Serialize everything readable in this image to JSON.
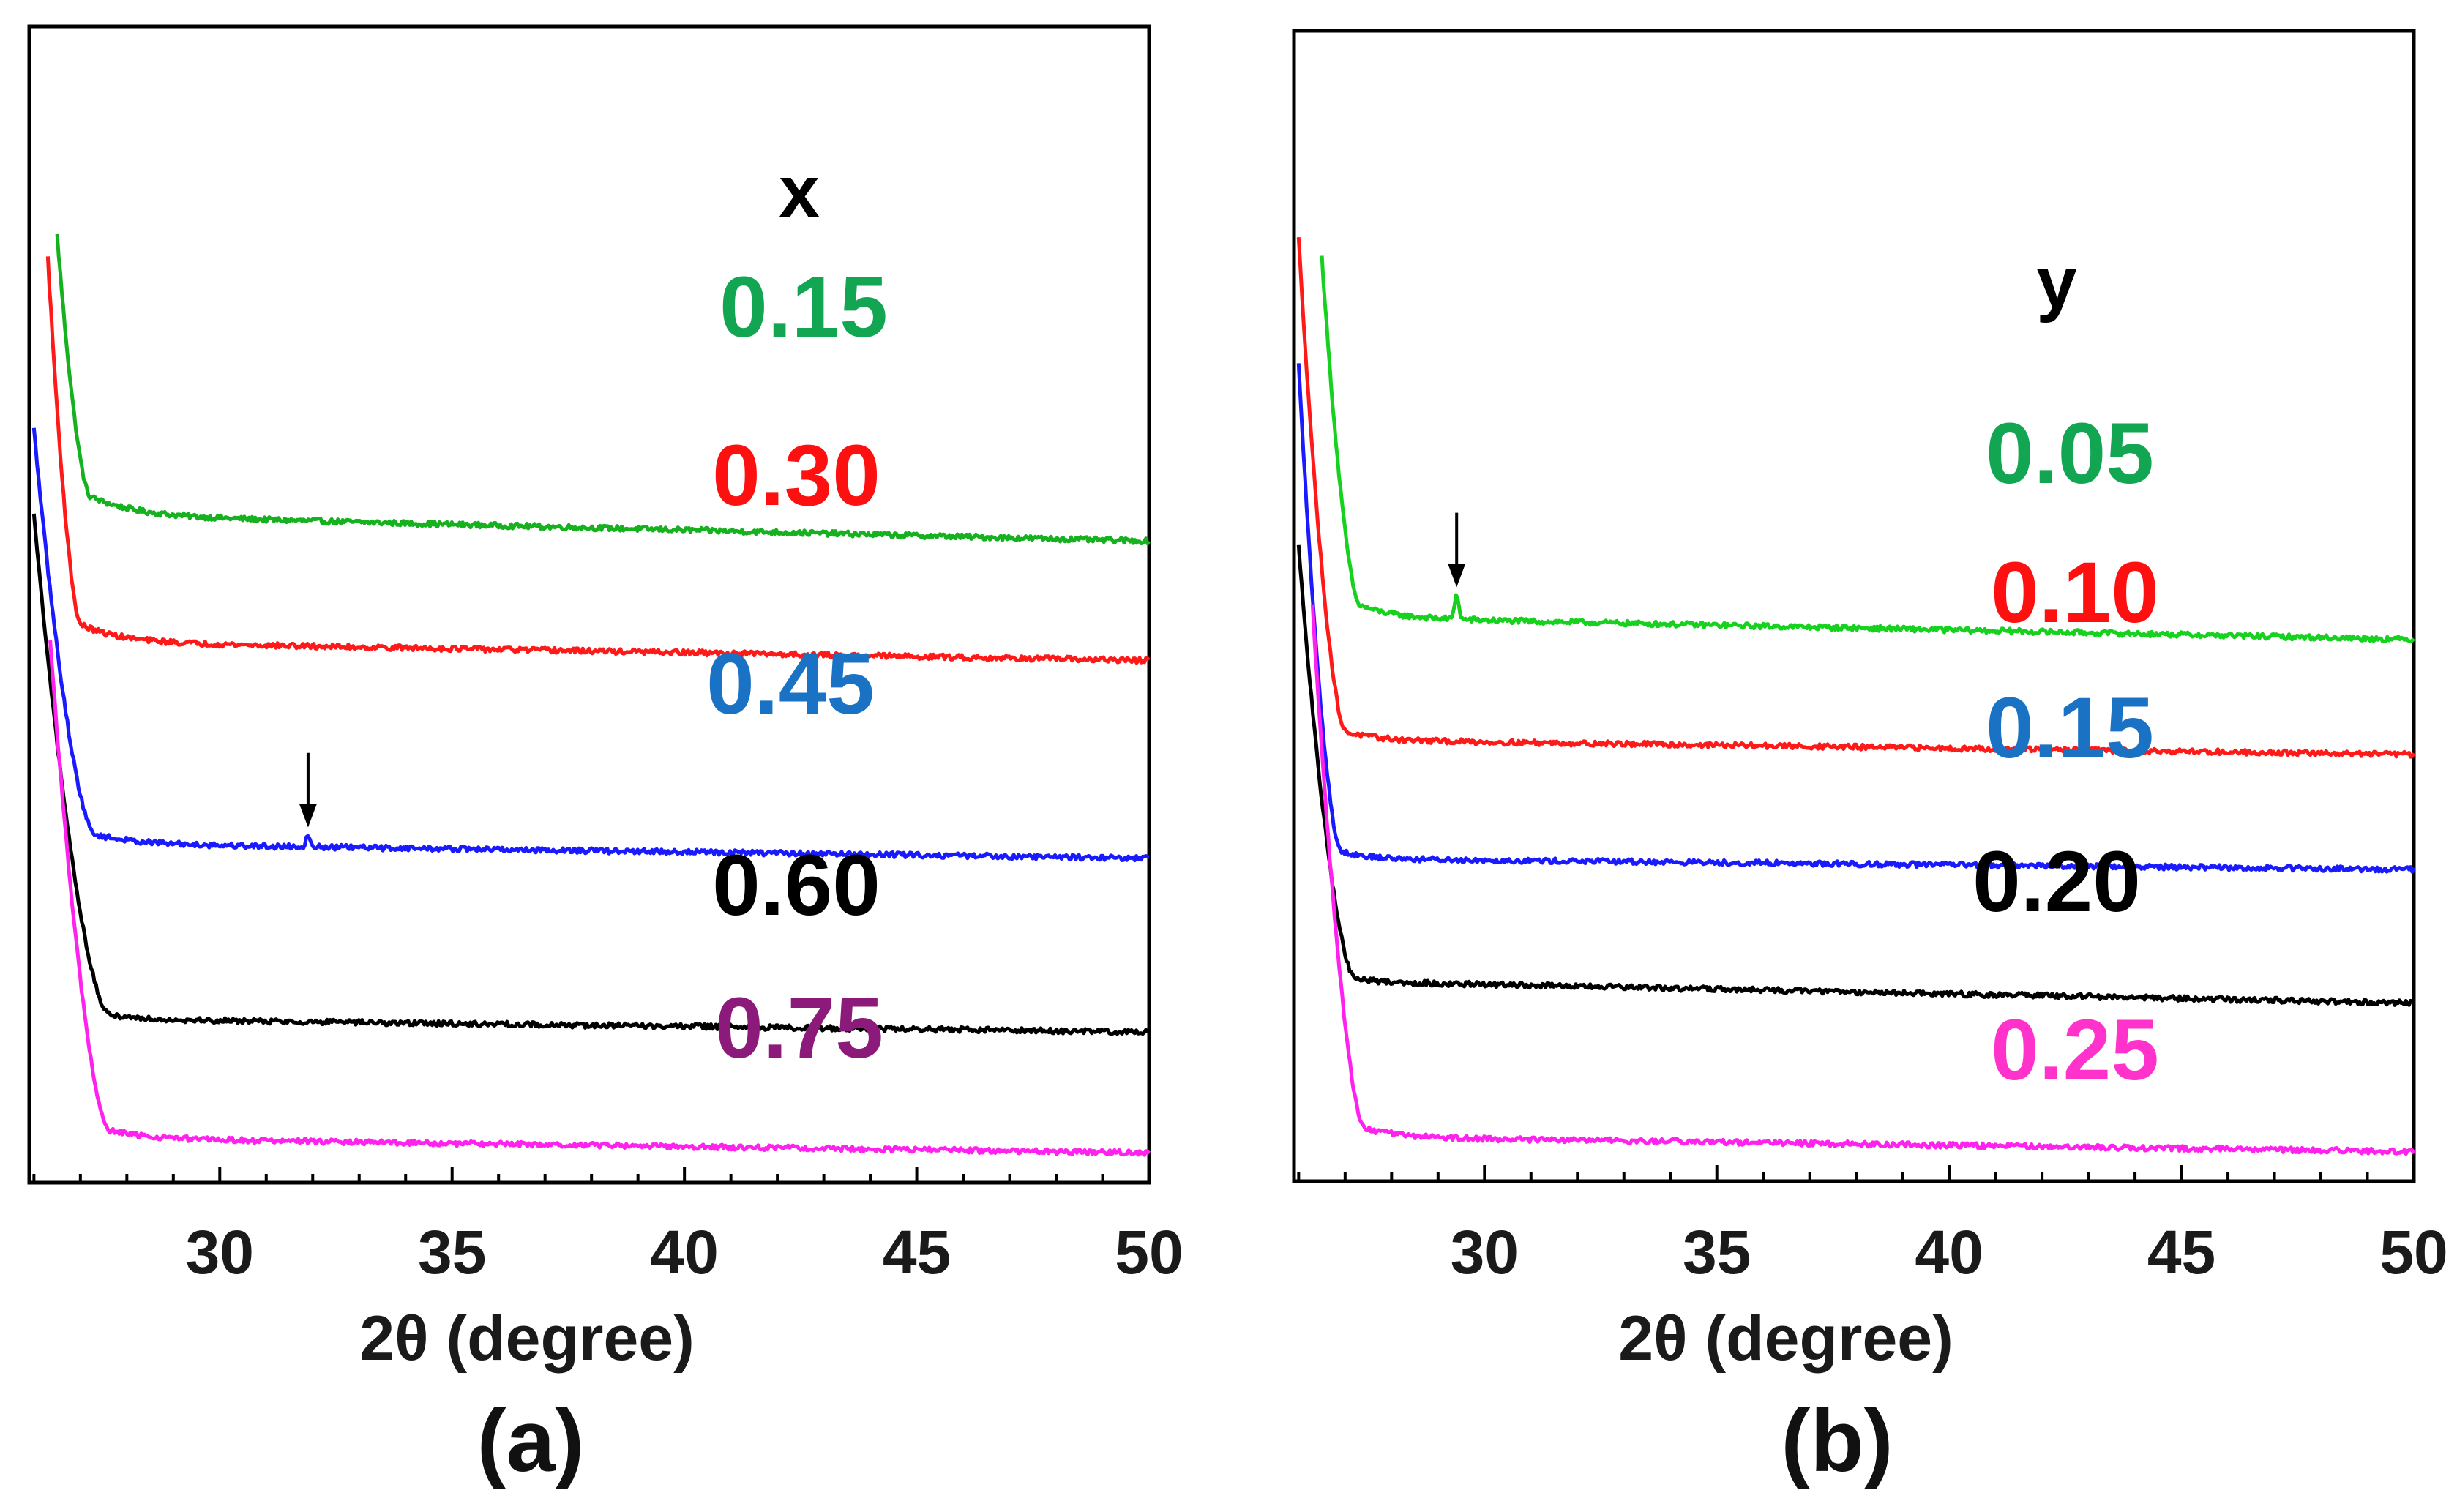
{
  "chart_data": [
    {
      "type": "line",
      "panel_label": "(a)",
      "legend_title": "x",
      "xlabel": "2θ (degree)",
      "ylabel": "",
      "xlim": [
        25.9,
        50
      ],
      "xticks": [
        30,
        35,
        40,
        45,
        50
      ],
      "xtick_labels": [
        "30",
        "35",
        "40",
        "45",
        "50"
      ],
      "y_units": "arbitrary (offset-stacked intensity)",
      "series": [
        {
          "name": "0.15",
          "color": "#16b11e",
          "label_color": "#12a552",
          "onset": 26.5,
          "baseline": 8.45,
          "amp": 3.2,
          "shoulder": 27.2,
          "decay": 0.95,
          "tail_drop": 0.35,
          "peak": null
        },
        {
          "name": "0.30",
          "color": "#ff1a1a",
          "label_color": "#ff1010",
          "onset": 26.3,
          "baseline": 6.75,
          "amp": 4.6,
          "shoulder": 27.0,
          "decay": 0.85,
          "tail_drop": 0.25,
          "peak": null
        },
        {
          "name": "0.45",
          "color": "#1a1aff",
          "label_color": "#1a72c4",
          "onset": 26.0,
          "baseline": 4.05,
          "amp": 5.0,
          "shoulder": 27.3,
          "decay": 0.9,
          "tail_drop": 0.2,
          "peak": {
            "x": 31.9,
            "height": 0.18
          }
        },
        {
          "name": "0.60",
          "color": "#000000",
          "label_color": "#000000",
          "onset": 26.0,
          "baseline": 1.7,
          "amp": 6.2,
          "shoulder": 27.6,
          "decay": 0.75,
          "tail_drop": 0.18,
          "peak": null
        },
        {
          "name": "0.75",
          "color": "#ff22ee",
          "label_color": "#8b1a7a",
          "onset": 26.35,
          "baseline": 0.1,
          "amp": 6.1,
          "shoulder": 27.6,
          "decay": 0.8,
          "tail_drop": 0.2,
          "peak": null
        }
      ],
      "annotations": [
        {
          "type": "arrow",
          "x": 31.9,
          "series": "0.45"
        }
      ]
    },
    {
      "type": "line",
      "panel_label": "(b)",
      "legend_title": "y",
      "xlabel": "2θ (degree)",
      "ylabel": "",
      "xlim": [
        25.9,
        50
      ],
      "xticks": [
        30,
        35,
        40,
        45,
        50
      ],
      "xtick_labels": [
        "30",
        "35",
        "40",
        "45",
        "50"
      ],
      "y_units": "arbitrary (offset-stacked intensity)",
      "series": [
        {
          "name": "0.05",
          "color": "#16d11e",
          "label_color": "#12a552",
          "onset": 26.5,
          "baseline": 7.1,
          "amp": 4.3,
          "shoulder": 27.3,
          "decay": 0.7,
          "tail_drop": 0.3,
          "peak": {
            "x": 29.4,
            "height": 0.35
          }
        },
        {
          "name": "0.10",
          "color": "#ff1a1a",
          "label_color": "#ff1010",
          "onset": 26.0,
          "baseline": 5.45,
          "amp": 6.2,
          "shoulder": 27.0,
          "decay": 0.65,
          "tail_drop": 0.2,
          "peak": null
        },
        {
          "name": "0.15",
          "color": "#1a1aff",
          "label_color": "#1a72c4",
          "onset": 26.0,
          "baseline": 3.85,
          "amp": 6.1,
          "shoulder": 26.9,
          "decay": 0.55,
          "tail_drop": 0.15,
          "peak": null
        },
        {
          "name": "0.20",
          "color": "#000000",
          "label_color": "#000000",
          "onset": 26.0,
          "baseline": 2.2,
          "amp": 5.3,
          "shoulder": 27.2,
          "decay": 0.5,
          "tail_drop": 0.3,
          "peak": null
        },
        {
          "name": "0.25",
          "color": "#ff22ee",
          "label_color": "#ff33cc",
          "onset": 26.3,
          "baseline": 0.1,
          "amp": 6.6,
          "shoulder": 27.4,
          "decay": 0.75,
          "tail_drop": 0.2,
          "peak": null
        }
      ],
      "annotations": [
        {
          "type": "arrow",
          "x": 29.4,
          "series": "0.05"
        }
      ]
    }
  ]
}
